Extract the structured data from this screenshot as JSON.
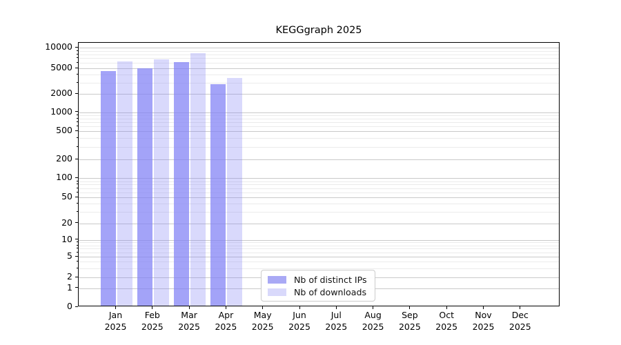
{
  "title": "KEGGgraph 2025",
  "legend": {
    "items": [
      {
        "label": "Nb of distinct IPs"
      },
      {
        "label": "Nb of downloads"
      }
    ]
  },
  "chart_data": {
    "type": "bar",
    "title": "KEGGgraph 2025",
    "categories": [
      "Jan 2025",
      "Feb 2025",
      "Mar 2025",
      "Apr 2025",
      "May 2025",
      "Jun 2025",
      "Jul 2025",
      "Aug 2025",
      "Sep 2025",
      "Oct 2025",
      "Nov 2025",
      "Dec 2025"
    ],
    "series": [
      {
        "name": "Nb of distinct IPs",
        "swatch_color": "#a9a9f5",
        "fill_color": "rgba(128,128,245,0.72)",
        "values": [
          4300,
          4800,
          5900,
          2700,
          0,
          0,
          0,
          0,
          0,
          0,
          0,
          0
        ]
      },
      {
        "name": "Nb of downloads",
        "swatch_color": "#d9d9fb",
        "fill_color": "rgba(128,128,245,0.30)",
        "values": [
          6000,
          6500,
          8000,
          3400,
          0,
          0,
          0,
          0,
          0,
          0,
          0,
          0
        ]
      }
    ],
    "yscale": "log-like with zero baseline",
    "y_ticks": [
      0,
      1,
      2,
      5,
      10,
      20,
      50,
      100,
      200,
      500,
      1000,
      2000,
      5000,
      10000
    ],
    "ylim": [
      0,
      11000
    ],
    "xlabel": "",
    "ylabel": "",
    "grid": "horizontal major and minor gridlines",
    "legend_position": "lower center inside axes"
  }
}
